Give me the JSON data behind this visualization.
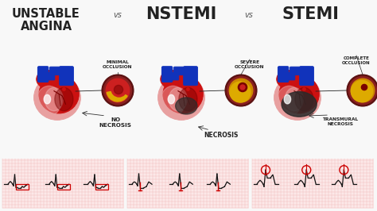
{
  "bg_color": "#f8f8f8",
  "title_ua": "UNSTABLE\nANGINA",
  "title_nstemi": "NSTEMI",
  "title_stemi": "STEMI",
  "vs_text": "vs",
  "label_min_occ": "MINIMAL\nOCCLUSION",
  "label_sev_occ": "SEVERE\nOCCLUSION",
  "label_comp_occ": "COMPLETE\nOCCLUSION",
  "label_no_nec": "NO\nNECROSIS",
  "label_nec": "NECROSIS",
  "label_trans_nec": "TRANSMURAL\nNECROSIS",
  "ecg_bg": "#fce8e8",
  "ecg_grid": "#f0b0b0",
  "ecg_line": "#111111",
  "ecg_red": "#cc0000",
  "heart_main": "#cc1111",
  "heart_dark": "#7a0000",
  "heart_med": "#aa1111",
  "heart_pink": "#e8a0a0",
  "heart_pink2": "#f0c0c0",
  "heart_blue": "#1133bb",
  "heart_blue2": "#2244cc",
  "heart_necrosis": "#2a2a2a",
  "heart_necrosis2": "#3a3a3a",
  "artery_outer": "#5a1010",
  "artery_mid": "#8a2020",
  "artery_lumen": "#cc2020",
  "artery_plaque": "#cc8800",
  "artery_plaque2": "#ddaa00",
  "font_color": "#222222",
  "font_color2": "#555555",
  "outline": "#111111"
}
